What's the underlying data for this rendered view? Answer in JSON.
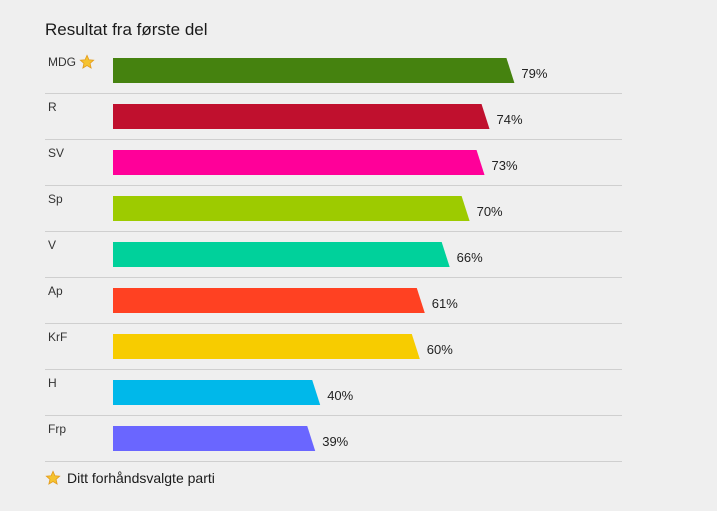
{
  "chart_data": {
    "type": "bar",
    "orientation": "horizontal",
    "title": "Resultat fra første del",
    "categories": [
      "MDG",
      "R",
      "SV",
      "Sp",
      "V",
      "Ap",
      "KrF",
      "H",
      "Frp"
    ],
    "values": [
      79,
      74,
      73,
      70,
      66,
      61,
      60,
      40,
      39
    ],
    "value_labels": [
      "79%",
      "74%",
      "73%",
      "70%",
      "66%",
      "61%",
      "60%",
      "40%",
      "39%"
    ],
    "colors": [
      "#45820f",
      "#c0102e",
      "#ff0099",
      "#9dcb00",
      "#00d19b",
      "#ff4122",
      "#f7cc00",
      "#00b8ea",
      "#6a66ff"
    ],
    "starred": "MDG",
    "xlim": [
      0,
      100
    ]
  },
  "legend": {
    "star_label": "Ditt forhåndsvalgte parti",
    "star_icon": "star-icon"
  }
}
